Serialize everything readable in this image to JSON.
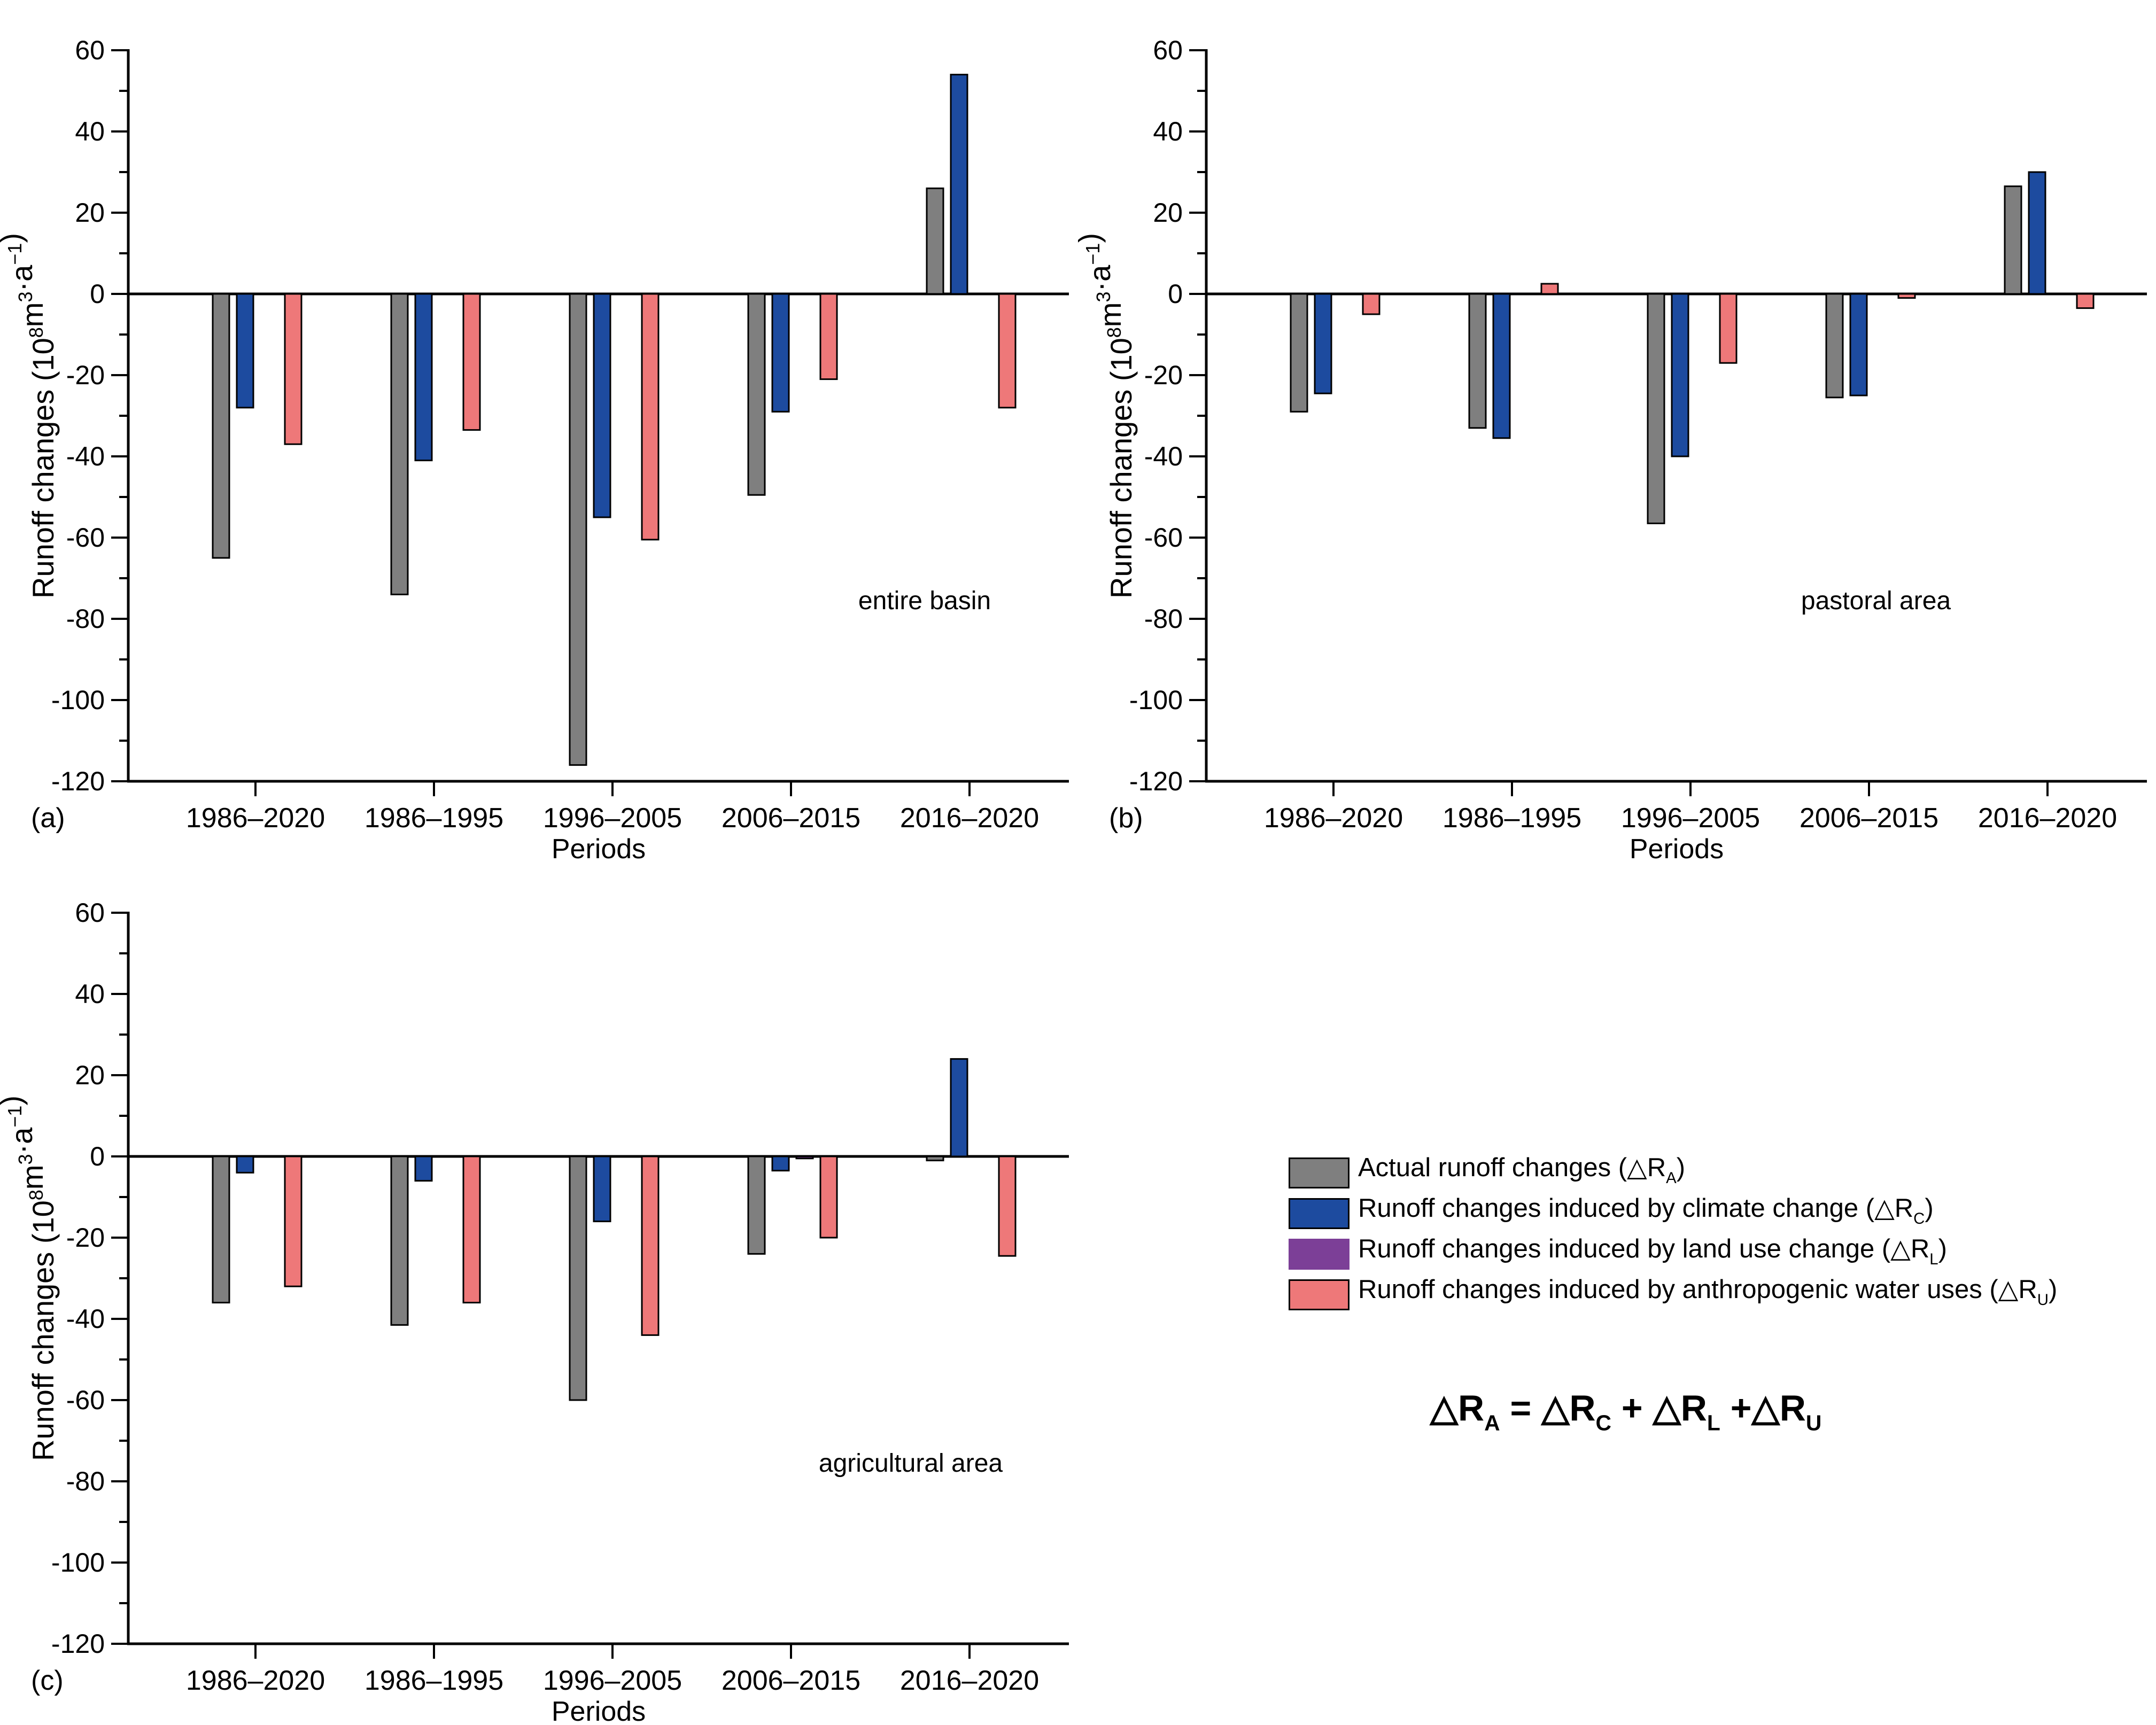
{
  "colors": {
    "actual": "#7f7f7f",
    "climate": "#1d4b9f",
    "landuse": "#7c3f97",
    "water": "#ee7879",
    "axis": "#000000",
    "background": "#ffffff"
  },
  "shared": {
    "xlabel": "Periods",
    "ylabel_text": "Runoff changes (10⁸m³·a⁻¹)",
    "ylabel_parts": [
      {
        "t": "Runoff changes (10"
      },
      {
        "t": "8",
        "sup": true
      },
      {
        "t": "m"
      },
      {
        "t": "3",
        "sup": true
      },
      {
        "t": "·a"
      },
      {
        "t": "−1",
        "sup": true
      },
      {
        "t": ")"
      }
    ],
    "ytick_labels": [
      "60",
      "40",
      "20",
      "0",
      "-20",
      "-40",
      "-60",
      "-80",
      "-100",
      "-120"
    ]
  },
  "chart_data": [
    {
      "id": "a",
      "type": "bar",
      "panel_label": "(a)",
      "annotation": "entire basin",
      "xlabel": "Periods",
      "ylabel": "Runoff changes (10⁸m³·a⁻¹)",
      "ylim": [
        -120,
        60
      ],
      "ytick_step": 20,
      "grid": false,
      "legend_position": "none",
      "categories": [
        "1986–2020",
        "1986–1995",
        "1996–2005",
        "2006–2015",
        "2016–2020"
      ],
      "series": [
        {
          "name": "actual",
          "values": [
            -65,
            -74,
            -116,
            -49.5,
            26
          ]
        },
        {
          "name": "climate",
          "values": [
            -28,
            -41,
            -55,
            -29,
            54
          ]
        },
        {
          "name": "landuse",
          "values": [
            0,
            0,
            0,
            0,
            0
          ]
        },
        {
          "name": "water",
          "values": [
            -37,
            -33.5,
            -60.5,
            -21,
            -28
          ]
        }
      ]
    },
    {
      "id": "b",
      "type": "bar",
      "panel_label": "(b)",
      "annotation": "pastoral area",
      "xlabel": "Periods",
      "ylabel": "Runoff changes (10⁸m³·a⁻¹)",
      "ylim": [
        -120,
        60
      ],
      "ytick_step": 20,
      "grid": false,
      "legend_position": "none",
      "categories": [
        "1986–2020",
        "1986–1995",
        "1996–2005",
        "2006–2015",
        "2016–2020"
      ],
      "series": [
        {
          "name": "actual",
          "values": [
            -29,
            -33,
            -56.5,
            -25.5,
            26.5
          ]
        },
        {
          "name": "climate",
          "values": [
            -24.5,
            -35.5,
            -40,
            -25,
            30
          ]
        },
        {
          "name": "landuse",
          "values": [
            0,
            0,
            0,
            0,
            0
          ]
        },
        {
          "name": "water",
          "values": [
            -5,
            2.5,
            -17,
            -1,
            -3.5
          ]
        }
      ]
    },
    {
      "id": "c",
      "type": "bar",
      "panel_label": "(c)",
      "annotation": "agricultural area",
      "xlabel": "Periods",
      "ylabel": "Runoff changes (10⁸m³·a⁻¹)",
      "ylim": [
        -120,
        60
      ],
      "ytick_step": 20,
      "grid": false,
      "legend_position": "none",
      "categories": [
        "1986–2020",
        "1986–1995",
        "1996–2005",
        "2006–2015",
        "2016–2020"
      ],
      "series": [
        {
          "name": "actual",
          "values": [
            -36,
            -41.5,
            -60,
            -24,
            -1
          ]
        },
        {
          "name": "climate",
          "values": [
            -4,
            -6,
            -16,
            -3.5,
            24
          ]
        },
        {
          "name": "landuse",
          "values": [
            0,
            0,
            0,
            -0.5,
            0
          ]
        },
        {
          "name": "water",
          "values": [
            -32,
            -36,
            -44,
            -20,
            -24.5
          ]
        }
      ]
    }
  ],
  "legend": {
    "items": [
      {
        "key": "actual",
        "pre": "Actual runoff changes (△R",
        "sub": "A",
        "post": ")",
        "bordered": true
      },
      {
        "key": "climate",
        "pre": "Runoff changes induced by climate change (△R",
        "sub": "C",
        "post": ")",
        "bordered": true
      },
      {
        "key": "landuse",
        "pre": "Runoff changes induced by land use change (△R",
        "sub": "L",
        "post": ")",
        "bordered": false
      },
      {
        "key": "water",
        "pre": "Runoff changes induced by anthropogenic water uses (△R",
        "sub": "U",
        "post": ")",
        "bordered": true
      }
    ]
  },
  "equation": {
    "text": "△R_A = △R_C + △R_L +△R_U",
    "segments": [
      {
        "t": "△R"
      },
      {
        "sub": "A"
      },
      {
        "t": " = "
      },
      {
        "t": "△R"
      },
      {
        "sub": "C"
      },
      {
        "t": " + "
      },
      {
        "t": "△R"
      },
      {
        "sub": "L"
      },
      {
        "t": " +"
      },
      {
        "t": "△R"
      },
      {
        "sub": "U"
      }
    ]
  }
}
